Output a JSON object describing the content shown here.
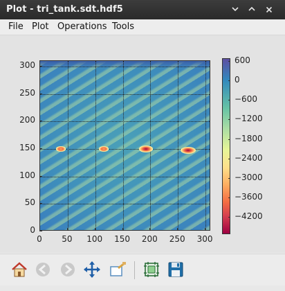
{
  "window": {
    "title": "Plot - tri_tank.sdt.hdf5"
  },
  "titlebar_buttons": [
    {
      "name": "minimize-button",
      "icon": "chevron-down-icon"
    },
    {
      "name": "maximize-button",
      "icon": "chevron-up-icon"
    },
    {
      "name": "close-button",
      "icon": "close-icon"
    }
  ],
  "menu": [
    "File",
    "Plot",
    "Operations",
    "Tools"
  ],
  "chart_data": {
    "type": "heatmap",
    "title": "",
    "xlabel": "",
    "ylabel": "",
    "xlim": [
      0,
      310
    ],
    "ylim": [
      0,
      310
    ],
    "x_ticks": [
      "0",
      "50",
      "100",
      "150",
      "200",
      "250",
      "300"
    ],
    "y_ticks": [
      "0",
      "50",
      "100",
      "150",
      "200",
      "250",
      "300"
    ],
    "grid": true,
    "colormap": "Spectral",
    "colorbar_ticks": [
      "600",
      "0",
      "−600",
      "−1200",
      "−1800",
      "−2400",
      "−3000",
      "−3600",
      "−4200"
    ],
    "colorbar_range": [
      -4600,
      600
    ],
    "background_value": 0,
    "hotspots": [
      {
        "x": 38,
        "y": 150,
        "value": -2000
      },
      {
        "x": 115,
        "y": 150,
        "value": -2000
      },
      {
        "x": 192,
        "y": 150,
        "value": -4000
      },
      {
        "x": 268,
        "y": 148,
        "value": -4600
      }
    ]
  },
  "toolbar": [
    {
      "name": "home-button",
      "icon": "home-icon",
      "enabled": true
    },
    {
      "name": "back-button",
      "icon": "arrow-left-icon",
      "enabled": false
    },
    {
      "name": "forward-button",
      "icon": "arrow-right-icon",
      "enabled": false
    },
    {
      "name": "pan-button",
      "icon": "move-arrows-icon",
      "enabled": true
    },
    {
      "name": "zoom-button",
      "icon": "zoom-rect-icon",
      "enabled": true
    },
    {
      "name": "configure-subplots-button",
      "icon": "subplots-icon",
      "enabled": true
    },
    {
      "name": "save-button",
      "icon": "floppy-disk-icon",
      "enabled": true
    }
  ]
}
